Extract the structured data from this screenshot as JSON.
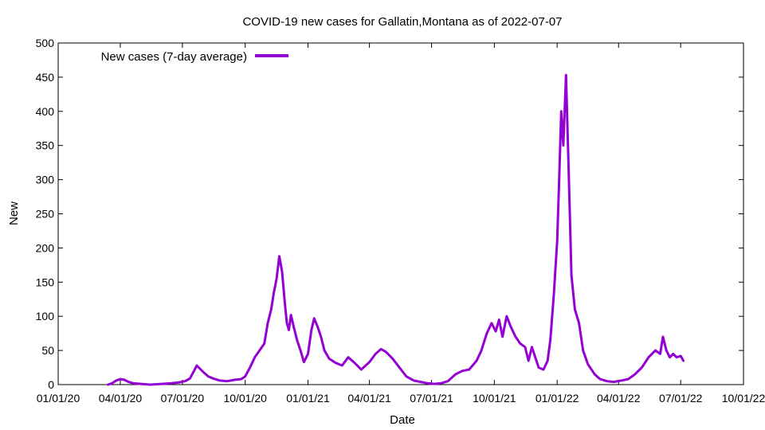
{
  "chart_data": {
    "type": "line",
    "title": "COVID-19 new cases for Gallatin,Montana as of 2022-07-07",
    "xlabel": "Date",
    "ylabel": "New",
    "xlim": [
      "2020-01-01",
      "2022-10-01"
    ],
    "ylim": [
      0,
      500
    ],
    "x_ticks": [
      {
        "date": "2020-01-01",
        "label": "01/01/20"
      },
      {
        "date": "2020-04-01",
        "label": "04/01/20"
      },
      {
        "date": "2020-07-01",
        "label": "07/01/20"
      },
      {
        "date": "2020-10-01",
        "label": "10/01/20"
      },
      {
        "date": "2021-01-01",
        "label": "01/01/21"
      },
      {
        "date": "2021-04-01",
        "label": "04/01/21"
      },
      {
        "date": "2021-07-01",
        "label": "07/01/21"
      },
      {
        "date": "2021-10-01",
        "label": "10/01/21"
      },
      {
        "date": "2022-01-01",
        "label": "01/01/22"
      },
      {
        "date": "2022-04-01",
        "label": "04/01/22"
      },
      {
        "date": "2022-07-01",
        "label": "07/01/22"
      },
      {
        "date": "2022-10-01",
        "label": "10/01/22"
      }
    ],
    "y_ticks": [
      0,
      50,
      100,
      150,
      200,
      250,
      300,
      350,
      400,
      450,
      500
    ],
    "grid": false,
    "legend_position": "top-left",
    "series": [
      {
        "name": "New cases (7-day average)",
        "color": "#9400d3",
        "points": [
          [
            "2020-03-14",
            0
          ],
          [
            "2020-03-20",
            2
          ],
          [
            "2020-03-26",
            6
          ],
          [
            "2020-04-01",
            8
          ],
          [
            "2020-04-07",
            7
          ],
          [
            "2020-04-13",
            4
          ],
          [
            "2020-04-20",
            2
          ],
          [
            "2020-05-01",
            1
          ],
          [
            "2020-05-15",
            0
          ],
          [
            "2020-06-01",
            1
          ],
          [
            "2020-06-15",
            2
          ],
          [
            "2020-06-25",
            3
          ],
          [
            "2020-07-05",
            5
          ],
          [
            "2020-07-12",
            9
          ],
          [
            "2020-07-18",
            20
          ],
          [
            "2020-07-22",
            28
          ],
          [
            "2020-07-26",
            24
          ],
          [
            "2020-08-01",
            18
          ],
          [
            "2020-08-08",
            12
          ],
          [
            "2020-08-15",
            9
          ],
          [
            "2020-08-25",
            6
          ],
          [
            "2020-09-05",
            5
          ],
          [
            "2020-09-15",
            7
          ],
          [
            "2020-09-25",
            8
          ],
          [
            "2020-10-01",
            12
          ],
          [
            "2020-10-08",
            25
          ],
          [
            "2020-10-15",
            40
          ],
          [
            "2020-10-22",
            50
          ],
          [
            "2020-10-29",
            60
          ],
          [
            "2020-11-03",
            90
          ],
          [
            "2020-11-08",
            110
          ],
          [
            "2020-11-12",
            135
          ],
          [
            "2020-11-16",
            155
          ],
          [
            "2020-11-20",
            188
          ],
          [
            "2020-11-24",
            165
          ],
          [
            "2020-11-28",
            120
          ],
          [
            "2020-12-01",
            90
          ],
          [
            "2020-12-04",
            80
          ],
          [
            "2020-12-07",
            102
          ],
          [
            "2020-12-11",
            85
          ],
          [
            "2020-12-16",
            65
          ],
          [
            "2020-12-21",
            50
          ],
          [
            "2020-12-26",
            33
          ],
          [
            "2021-01-01",
            45
          ],
          [
            "2021-01-06",
            80
          ],
          [
            "2021-01-10",
            97
          ],
          [
            "2021-01-15",
            85
          ],
          [
            "2021-01-20",
            70
          ],
          [
            "2021-01-25",
            50
          ],
          [
            "2021-02-01",
            38
          ],
          [
            "2021-02-10",
            32
          ],
          [
            "2021-02-20",
            28
          ],
          [
            "2021-03-01",
            40
          ],
          [
            "2021-03-10",
            32
          ],
          [
            "2021-03-20",
            22
          ],
          [
            "2021-04-01",
            33
          ],
          [
            "2021-04-10",
            45
          ],
          [
            "2021-04-18",
            52
          ],
          [
            "2021-04-25",
            48
          ],
          [
            "2021-05-05",
            38
          ],
          [
            "2021-05-15",
            25
          ],
          [
            "2021-05-25",
            12
          ],
          [
            "2021-06-05",
            6
          ],
          [
            "2021-06-15",
            4
          ],
          [
            "2021-06-25",
            2
          ],
          [
            "2021-07-05",
            1
          ],
          [
            "2021-07-15",
            2
          ],
          [
            "2021-07-25",
            5
          ],
          [
            "2021-08-05",
            15
          ],
          [
            "2021-08-15",
            20
          ],
          [
            "2021-08-25",
            22
          ],
          [
            "2021-09-05",
            35
          ],
          [
            "2021-09-12",
            50
          ],
          [
            "2021-09-20",
            75
          ],
          [
            "2021-09-27",
            90
          ],
          [
            "2021-10-03",
            78
          ],
          [
            "2021-10-08",
            95
          ],
          [
            "2021-10-13",
            70
          ],
          [
            "2021-10-19",
            100
          ],
          [
            "2021-10-25",
            85
          ],
          [
            "2021-11-01",
            70
          ],
          [
            "2021-11-08",
            60
          ],
          [
            "2021-11-15",
            55
          ],
          [
            "2021-11-20",
            35
          ],
          [
            "2021-11-25",
            55
          ],
          [
            "2021-11-30",
            40
          ],
          [
            "2021-12-05",
            25
          ],
          [
            "2021-12-12",
            22
          ],
          [
            "2021-12-18",
            35
          ],
          [
            "2021-12-22",
            65
          ],
          [
            "2021-12-27",
            130
          ],
          [
            "2022-01-01",
            210
          ],
          [
            "2022-01-04",
            300
          ],
          [
            "2022-01-07",
            400
          ],
          [
            "2022-01-10",
            350
          ],
          [
            "2022-01-14",
            453
          ],
          [
            "2022-01-18",
            310
          ],
          [
            "2022-01-22",
            160
          ],
          [
            "2022-01-27",
            110
          ],
          [
            "2022-02-02",
            90
          ],
          [
            "2022-02-08",
            50
          ],
          [
            "2022-02-15",
            30
          ],
          [
            "2022-02-25",
            15
          ],
          [
            "2022-03-05",
            8
          ],
          [
            "2022-03-15",
            5
          ],
          [
            "2022-03-25",
            4
          ],
          [
            "2022-04-05",
            6
          ],
          [
            "2022-04-15",
            8
          ],
          [
            "2022-04-25",
            15
          ],
          [
            "2022-05-05",
            25
          ],
          [
            "2022-05-15",
            40
          ],
          [
            "2022-05-25",
            50
          ],
          [
            "2022-06-01",
            45
          ],
          [
            "2022-06-05",
            70
          ],
          [
            "2022-06-10",
            50
          ],
          [
            "2022-06-15",
            40
          ],
          [
            "2022-06-20",
            45
          ],
          [
            "2022-06-25",
            40
          ],
          [
            "2022-07-01",
            42
          ],
          [
            "2022-07-05",
            35
          ]
        ]
      }
    ]
  }
}
